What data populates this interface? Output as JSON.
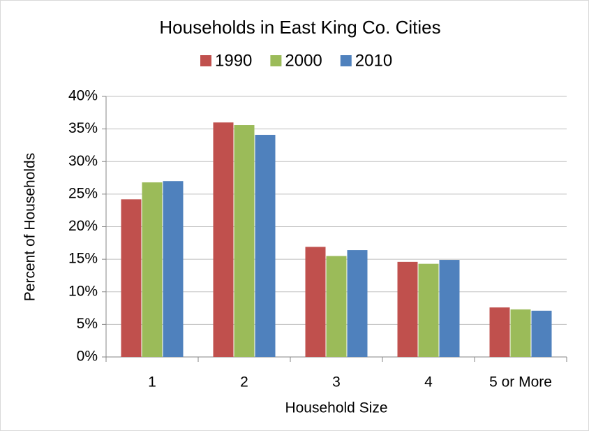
{
  "chart_data": {
    "type": "bar",
    "title": "Households in East King Co. Cities",
    "x_label": "Household Size",
    "y_label": "Percent of Households",
    "categories": [
      "1",
      "2",
      "3",
      "4",
      "5 or More"
    ],
    "series": [
      {
        "name": "1990",
        "color": "#c0504d",
        "values": [
          24.2,
          36.0,
          16.9,
          14.6,
          7.6
        ]
      },
      {
        "name": "2000",
        "color": "#9bbb59",
        "values": [
          26.8,
          35.6,
          15.5,
          14.3,
          7.3
        ]
      },
      {
        "name": "2010",
        "color": "#4f81bd",
        "values": [
          27.0,
          34.1,
          16.4,
          14.9,
          7.1
        ]
      }
    ],
    "ylim": [
      0,
      40
    ],
    "yticks": [
      {
        "value": 0,
        "label": "0%"
      },
      {
        "value": 5,
        "label": "5%"
      },
      {
        "value": 10,
        "label": "10%"
      },
      {
        "value": 15,
        "label": "15%"
      },
      {
        "value": 20,
        "label": "20%"
      },
      {
        "value": 25,
        "label": "25%"
      },
      {
        "value": 30,
        "label": "30%"
      },
      {
        "value": 35,
        "label": "35%"
      },
      {
        "value": 40,
        "label": "40%"
      }
    ],
    "grid": true,
    "legend": "top"
  }
}
